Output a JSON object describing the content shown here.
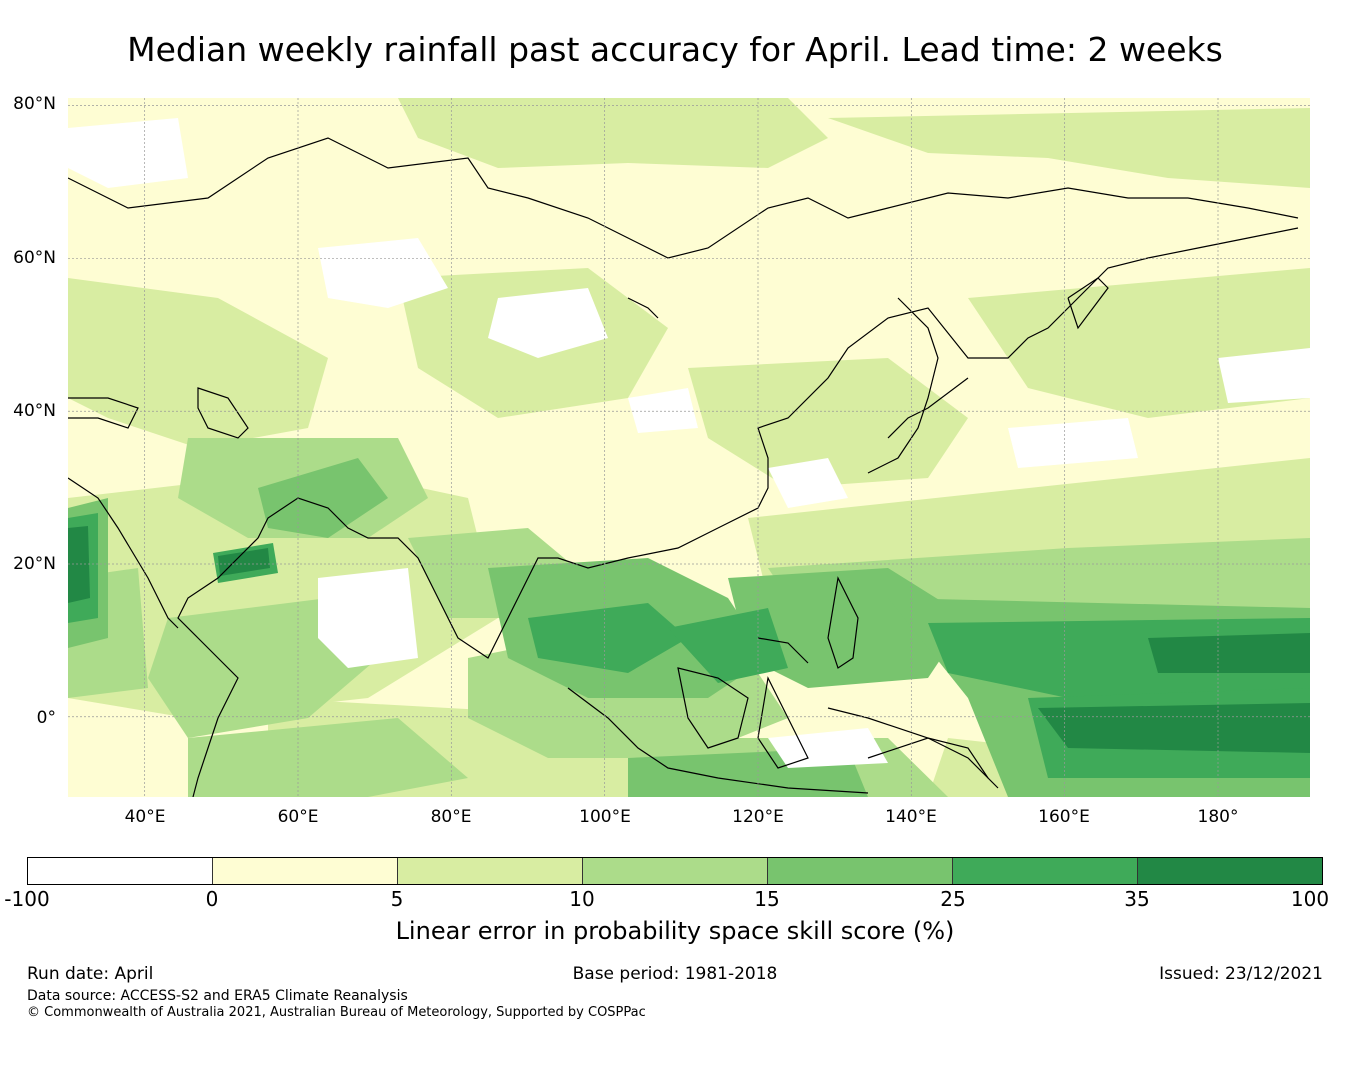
{
  "title": "Median weekly rainfall past accuracy for April. Lead time: 2 weeks",
  "map": {
    "lat_labels": [
      "80°N",
      "60°N",
      "40°N",
      "20°N",
      "0°"
    ],
    "lon_labels": [
      "40°E",
      "60°E",
      "80°E",
      "100°E",
      "120°E",
      "140°E",
      "160°E",
      "180°"
    ],
    "lat_values": [
      80,
      60,
      40,
      20,
      0
    ],
    "lon_values": [
      40,
      60,
      80,
      100,
      120,
      140,
      160,
      180
    ],
    "extent": {
      "lon_min": 30,
      "lon_max": 192,
      "lat_min": -10.5,
      "lat_max": 81
    },
    "gridlines": true
  },
  "colorbar": {
    "bounds": [
      "-100",
      "0",
      "5",
      "10",
      "15",
      "25",
      "35",
      "100"
    ],
    "colors": [
      "#ffffff",
      "#fefdd3",
      "#d8eda2",
      "#acdc8a",
      "#78c46e",
      "#3faa59",
      "#228845"
    ],
    "label": "Linear error in probability space skill score (%)"
  },
  "footer": {
    "run_date": "Run date: April",
    "base_period": "Base period: 1981-2018",
    "issued": "Issued: 23/12/2021",
    "data_source": "Data source: ACCESS-S2 and ERA5 Climate Reanalysis",
    "copyright": "© Commonwealth of Australia 2021, Australian Bureau of Meteorology, Supported by COSPPac"
  }
}
